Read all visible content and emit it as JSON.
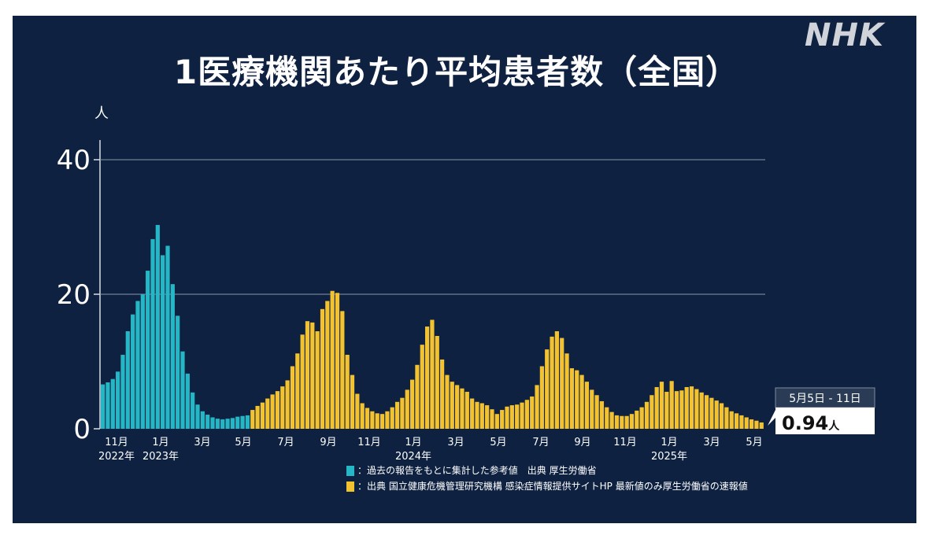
{
  "title": "1医療機関あたり平均患者数（全国）",
  "logo": "NHK",
  "colors": {
    "background": "#0e2140",
    "reference": "#26b7c6",
    "official": "#f2c230",
    "grid": "#8a96a8",
    "text": "#ffffff"
  },
  "chart_data": {
    "type": "bar",
    "ylabel": "人",
    "ylim": [
      0,
      43
    ],
    "yticks": [
      0,
      20,
      40
    ],
    "grid": true,
    "x_tick_labels": [
      "11月",
      "1月",
      "3月",
      "5月",
      "7月",
      "9月",
      "11月",
      "1月",
      "3月",
      "5月",
      "7月",
      "9月",
      "11月",
      "1月",
      "3月",
      "5月"
    ],
    "year_labels": [
      "2022年",
      "2023年",
      "2024年",
      "2025年"
    ],
    "series": [
      {
        "name": "過去の報告をもとに集計した参考値",
        "color": "#26b7c6",
        "values": [
          6.6,
          6.9,
          7.4,
          8.5,
          11.0,
          14.5,
          17.0,
          19.0,
          20.0,
          23.5,
          28.2,
          30.3,
          25.8,
          27.2,
          21.5,
          16.8,
          11.5,
          8.2,
          5.4,
          3.6,
          2.6,
          2.1,
          1.7,
          1.5,
          1.4,
          1.5,
          1.6,
          1.8,
          1.9,
          2.0
        ]
      },
      {
        "name": "国立健康危機管理研究機構 感染症情報提供サイトHP",
        "color": "#f2c230",
        "values": [
          2.8,
          3.4,
          3.9,
          4.5,
          5.1,
          5.6,
          6.3,
          7.2,
          9.3,
          11.2,
          14.0,
          16.0,
          15.8,
          14.5,
          17.8,
          19.0,
          20.5,
          20.2,
          17.5,
          11.0,
          8.0,
          5.2,
          3.8,
          3.1,
          2.6,
          2.3,
          2.2,
          2.6,
          3.2,
          4.0,
          4.6,
          5.8,
          7.3,
          9.5,
          12.5,
          15.2,
          16.2,
          13.8,
          10.3,
          8.0,
          7.0,
          6.5,
          6.0,
          5.5,
          4.5,
          4.0,
          3.8,
          3.5,
          2.9,
          2.2,
          2.8,
          3.3,
          3.5,
          3.6,
          3.9,
          4.3,
          4.8,
          6.5,
          9.3,
          11.8,
          13.7,
          14.5,
          13.5,
          11.2,
          9.0,
          8.7,
          8.0,
          7.0,
          5.8,
          5.0,
          4.1,
          3.2,
          2.5,
          2.0,
          1.9,
          1.9,
          2.2,
          2.7,
          3.2,
          4.0,
          5.0,
          6.2,
          7.0,
          5.5,
          7.1,
          5.6,
          5.7,
          6.2,
          6.3,
          5.9,
          5.4,
          5.0,
          4.6,
          4.2,
          3.8,
          3.2,
          2.6,
          2.3,
          2.0,
          1.7,
          1.4,
          1.2,
          0.94
        ]
      }
    ],
    "annotation": {
      "date": "5月5日 - 11日",
      "value": "0.94",
      "unit": "人"
    },
    "legend": [
      {
        "label": "：過去の報告をもとに集計した参考値　出典 厚生労働省",
        "color": "#26b7c6"
      },
      {
        "label": "：出典 国立健康危機管理研究機構 感染症情報提供サイトHP 最新値のみ厚生労働省の速報値",
        "color": "#f2c230"
      }
    ]
  }
}
